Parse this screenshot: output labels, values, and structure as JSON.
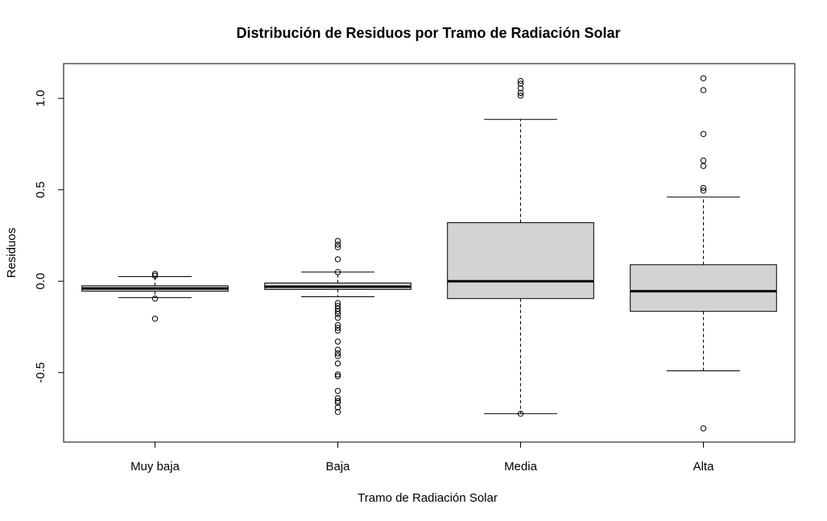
{
  "chart_data": {
    "type": "boxplot",
    "title": "Distribución de Residuos por Tramo de Radiación Solar",
    "xlabel": "Tramo de Radiación Solar",
    "ylabel": "Residuos",
    "ylim": [
      -0.88,
      1.19
    ],
    "yticks": [
      -0.5,
      0.0,
      0.5,
      1.0
    ],
    "ytick_labels": [
      "-0.5",
      "0.0",
      "0.5",
      "1.0"
    ],
    "categories": [
      "Muy baja",
      "Baja",
      "Media",
      "Alta"
    ],
    "box_color": "#d3d3d3",
    "boxes": [
      {
        "name": "Muy baja",
        "whisker_low": -0.09,
        "q1": -0.055,
        "median": -0.04,
        "q3": -0.025,
        "whisker_high": 0.025,
        "outliers": [
          0.04,
          0.03,
          -0.095,
          -0.205
        ]
      },
      {
        "name": "Baja",
        "whisker_low": -0.085,
        "q1": -0.045,
        "median": -0.03,
        "q3": -0.01,
        "whisker_high": 0.05,
        "outliers": [
          0.22,
          0.2,
          0.185,
          0.12,
          0.05,
          -0.12,
          -0.135,
          -0.15,
          -0.165,
          -0.18,
          -0.2,
          -0.24,
          -0.255,
          -0.27,
          -0.33,
          -0.375,
          -0.395,
          -0.41,
          -0.45,
          -0.51,
          -0.52,
          -0.6,
          -0.64,
          -0.655,
          -0.665,
          -0.69,
          -0.715
        ]
      },
      {
        "name": "Media",
        "whisker_low": -0.725,
        "q1": -0.095,
        "median": 0.0,
        "q3": 0.32,
        "whisker_high": 0.885,
        "outliers": [
          1.095,
          1.08,
          1.055,
          1.03,
          1.015,
          -0.725
        ]
      },
      {
        "name": "Alta",
        "whisker_low": -0.49,
        "q1": -0.165,
        "median": -0.055,
        "q3": 0.09,
        "whisker_high": 0.46,
        "outliers": [
          1.11,
          1.045,
          0.805,
          0.66,
          0.63,
          0.51,
          0.495,
          -0.805
        ]
      }
    ]
  }
}
